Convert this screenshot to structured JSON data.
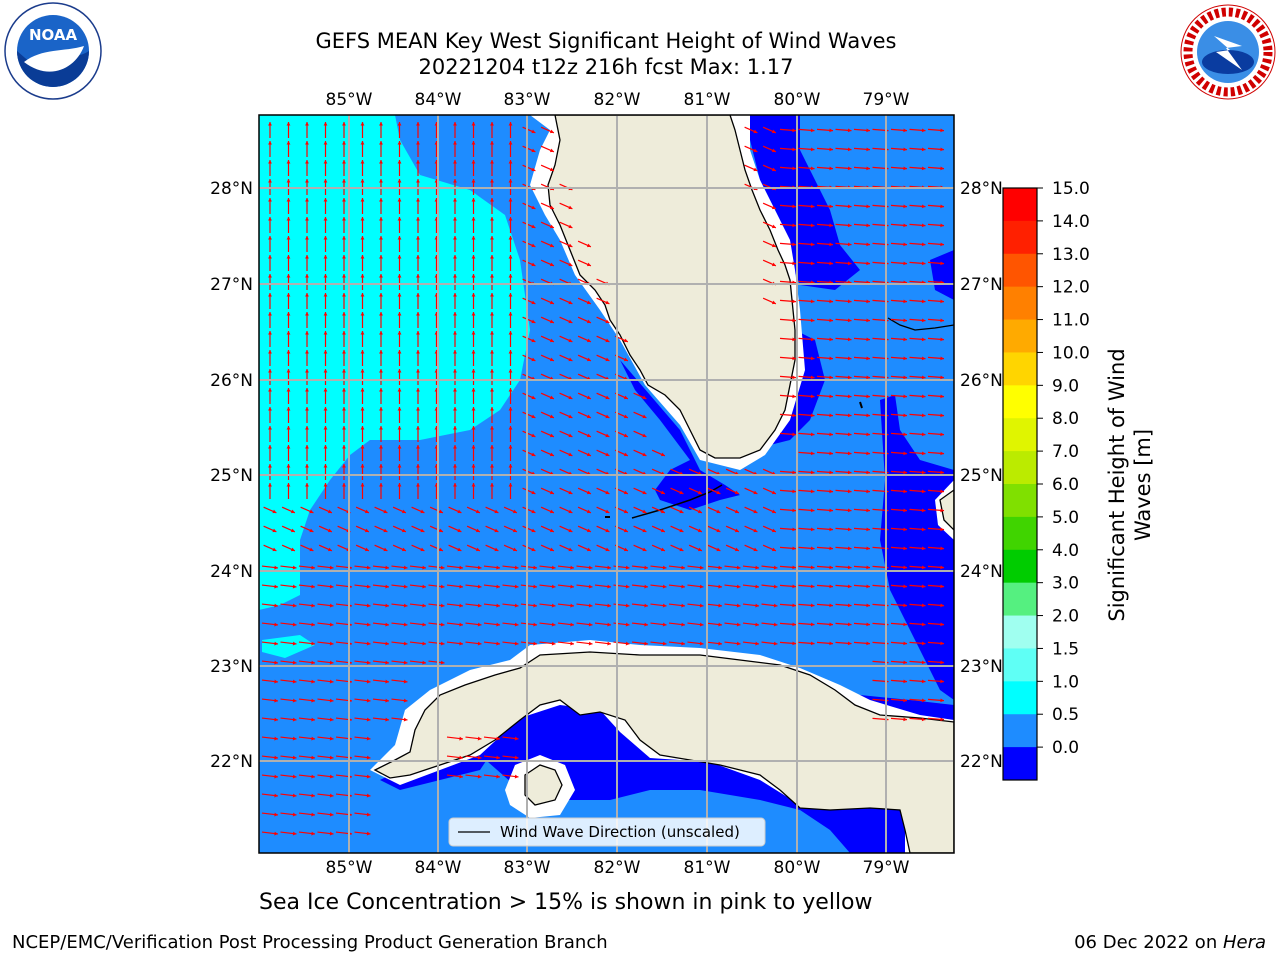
{
  "header": {
    "title_line1": "GEFS MEAN Key West Significant Height of Wind Waves",
    "title_line2": "20221204 t12z 216h fcst   Max: 1.17"
  },
  "logos": {
    "left": {
      "text": "NOAA",
      "icon": "noaa-logo-icon",
      "ring_text": "NATIONAL OCEANIC AND ATMOSPHERIC ADMINISTRATION · U.S. DEPARTMENT OF COMMERCE"
    },
    "right": {
      "icon": "nws-logo-icon",
      "ring_text": "NATIONAL WEATHER SERVICE"
    }
  },
  "map": {
    "lon_labels": [
      "85°W",
      "84°W",
      "83°W",
      "82°W",
      "81°W",
      "80°W",
      "79°W"
    ],
    "lat_labels": [
      "28°N",
      "27°N",
      "26°N",
      "25°N",
      "24°N",
      "23°N",
      "22°N"
    ],
    "legend_label": "Wind Wave Direction (unscaled)",
    "colors": {
      "land": "#eeecda",
      "level_0_0.5": "#0000ff",
      "level_0.5_1.0": "#1e8cff",
      "level_1.0_1.5": "#00ffff",
      "arrow": "#ff0000",
      "grid": "#b0b0b0"
    }
  },
  "colorbar": {
    "label": "Significant Height of Wind Waves [m]",
    "ticks": [
      "15.0",
      "14.0",
      "13.0",
      "12.0",
      "11.0",
      "10.0",
      "9.0",
      "8.0",
      "7.0",
      "6.0",
      "5.0",
      "4.0",
      "3.0",
      "2.0",
      "1.5",
      "1.0",
      "0.5",
      "0.0"
    ],
    "colors": [
      "#ff0000",
      "#ff2000",
      "#ff5500",
      "#ff8000",
      "#ffaa00",
      "#ffd500",
      "#ffff00",
      "#e0f500",
      "#bbeb00",
      "#80e000",
      "#40d400",
      "#00cc00",
      "#55f080",
      "#a0fff0",
      "#5ffff5",
      "#00ffff",
      "#1e8cff",
      "#0000ff"
    ]
  },
  "note": "Sea Ice Concentration > 15% is shown in pink to yellow",
  "footer": {
    "left": "NCEP/EMC/Verification Post Processing Product Generation Branch",
    "date": "06 Dec 2022 on ",
    "machine": "Hera"
  }
}
